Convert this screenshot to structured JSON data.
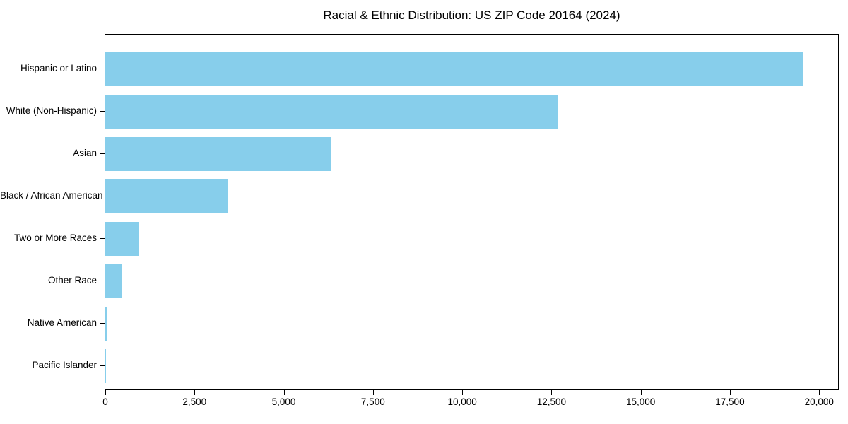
{
  "chart_data": {
    "type": "bar",
    "orientation": "horizontal",
    "title": "Racial & Ethnic Distribution: US ZIP Code 20164 (2024)",
    "categories": [
      "Hispanic or Latino",
      "White (Non-Hispanic)",
      "Asian",
      "Black / African American",
      "Two or More Races",
      "Other Race",
      "Native American",
      "Pacific Islander"
    ],
    "values": [
      19550,
      12700,
      6320,
      3450,
      950,
      450,
      30,
      10
    ],
    "xlabel": "",
    "ylabel": "",
    "xlim": [
      0,
      20530
    ],
    "x_ticks": [
      {
        "value": 0,
        "label": "0"
      },
      {
        "value": 2500,
        "label": "2,500"
      },
      {
        "value": 5000,
        "label": "5,000"
      },
      {
        "value": 7500,
        "label": "7,500"
      },
      {
        "value": 10000,
        "label": "10,000"
      },
      {
        "value": 12500,
        "label": "12,500"
      },
      {
        "value": 15000,
        "label": "15,000"
      },
      {
        "value": 17500,
        "label": "17,500"
      },
      {
        "value": 20000,
        "label": "20,000"
      }
    ],
    "bar_color": "#87CEEB",
    "axis_color": "#000000",
    "text_color": "#000000",
    "grid": false,
    "legend_position": "none"
  }
}
